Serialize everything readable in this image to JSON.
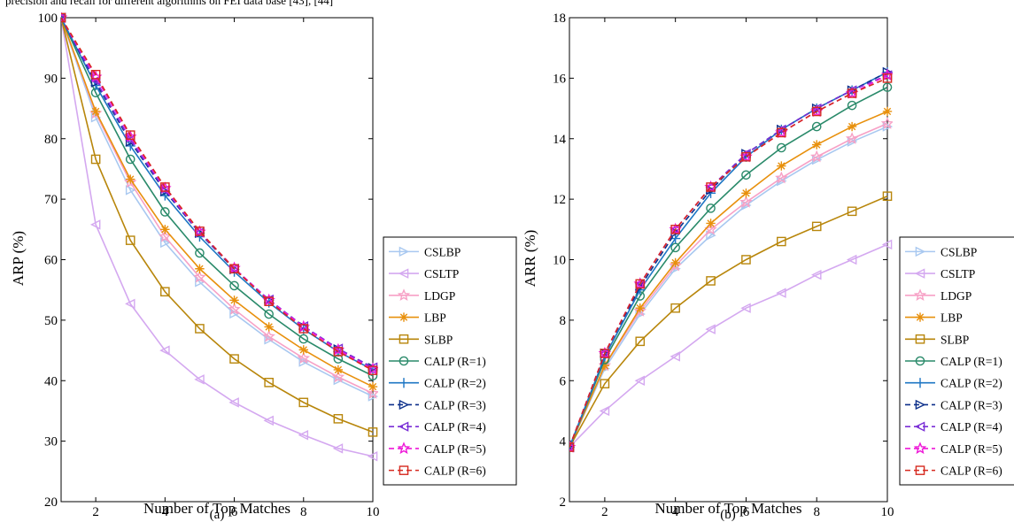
{
  "caption": "precision and recall for different algorithms on FEI data base [43], [44]",
  "colors": {
    "CSLBP": "#a8c8f0",
    "CSLTP": "#d4a8f0",
    "LDGP": "#f7a1c6",
    "LBP": "#e8900c",
    "SLBP": "#b8860b",
    "CALP (R=1)": "#2a8a6a",
    "CALP (R=2)": "#1d76c4",
    "CALP (R=3)": "#0c2f8a",
    "CALP (R=4)": "#7a2fd6",
    "CALP (R=5)": "#ee18d8",
    "CALP (R=6)": "#d62a20"
  },
  "chart_data": [
    {
      "type": "line",
      "panel_label": "(a)",
      "xlabel": "Number of Top Matches",
      "ylabel": "ARP (%)",
      "xlim": [
        1,
        10
      ],
      "ylim": [
        20,
        100
      ],
      "xticks": [
        2,
        4,
        6,
        8,
        10
      ],
      "yticks": [
        20,
        30,
        40,
        50,
        60,
        70,
        80,
        90,
        100
      ],
      "grid": false,
      "legend_position": "outside-right-bottom",
      "x": [
        1,
        2,
        3,
        4,
        5,
        6,
        7,
        8,
        9,
        10
      ],
      "series": [
        {
          "name": "CSLBP",
          "marker": "triangle-right",
          "dash": "solid",
          "values": [
            100,
            83.5,
            71.5,
            62.8,
            56.3,
            51.1,
            46.8,
            43.1,
            40.1,
            37.4
          ]
        },
        {
          "name": "CSLTP",
          "marker": "triangle-left",
          "dash": "solid",
          "values": [
            100,
            65.8,
            52.7,
            45.0,
            40.2,
            36.4,
            33.4,
            31.0,
            28.8,
            27.5
          ]
        },
        {
          "name": "LDGP",
          "marker": "star",
          "dash": "solid",
          "values": [
            100,
            84.2,
            72.8,
            63.8,
            57.1,
            51.8,
            47.3,
            43.7,
            40.6,
            37.9
          ]
        },
        {
          "name": "LBP",
          "marker": "asterisk",
          "dash": "solid",
          "values": [
            100,
            84.5,
            73.3,
            65.0,
            58.5,
            53.3,
            48.9,
            45.1,
            41.8,
            39.0
          ]
        },
        {
          "name": "SLBP",
          "marker": "square",
          "dash": "solid",
          "values": [
            100,
            76.6,
            63.2,
            54.7,
            48.6,
            43.6,
            39.7,
            36.4,
            33.7,
            31.5
          ]
        },
        {
          "name": "CALP (R=1)",
          "marker": "circle",
          "dash": "solid",
          "values": [
            100,
            87.6,
            76.6,
            67.9,
            61.1,
            55.7,
            51.0,
            46.9,
            43.6,
            40.8
          ]
        },
        {
          "name": "CALP (R=2)",
          "marker": "plus",
          "dash": "solid",
          "values": [
            100,
            88.8,
            78.8,
            70.6,
            63.8,
            58.0,
            52.9,
            48.5,
            44.8,
            41.8
          ]
        },
        {
          "name": "CALP (R=3)",
          "marker": "triangle-right",
          "dash": "dashed",
          "values": [
            100,
            89.3,
            79.5,
            71.3,
            64.4,
            58.4,
            53.3,
            48.9,
            45.2,
            42.1
          ]
        },
        {
          "name": "CALP (R=4)",
          "marker": "triangle-left",
          "dash": "dashed",
          "values": [
            100,
            89.6,
            79.8,
            71.5,
            64.5,
            58.5,
            53.4,
            49.0,
            45.3,
            42.2
          ]
        },
        {
          "name": "CALP (R=5)",
          "marker": "star",
          "dash": "dashed",
          "values": [
            100,
            90.2,
            80.3,
            71.8,
            64.6,
            58.6,
            53.3,
            48.9,
            45.1,
            41.9
          ]
        },
        {
          "name": "CALP (R=6)",
          "marker": "square",
          "dash": "dashed",
          "values": [
            100,
            90.6,
            80.6,
            72.0,
            64.7,
            58.5,
            53.1,
            48.6,
            44.8,
            41.7
          ]
        }
      ]
    },
    {
      "type": "line",
      "panel_label": "(b)",
      "xlabel": "Number of Top Matches",
      "ylabel": "ARR (%)",
      "xlim": [
        1,
        10
      ],
      "ylim": [
        2,
        18
      ],
      "xticks": [
        2,
        4,
        6,
        8,
        10
      ],
      "yticks": [
        2,
        4,
        6,
        8,
        10,
        12,
        14,
        16,
        18
      ],
      "grid": false,
      "legend_position": "outside-right-bottom",
      "x": [
        1,
        2,
        3,
        4,
        5,
        6,
        7,
        8,
        9,
        10
      ],
      "series": [
        {
          "name": "CSLBP",
          "marker": "triangle-right",
          "dash": "solid",
          "values": [
            3.8,
            6.4,
            8.2,
            9.7,
            10.8,
            11.8,
            12.6,
            13.3,
            13.9,
            14.4
          ]
        },
        {
          "name": "CSLTP",
          "marker": "triangle-left",
          "dash": "solid",
          "values": [
            3.8,
            5.0,
            6.0,
            6.8,
            7.7,
            8.4,
            8.9,
            9.5,
            10.0,
            10.5
          ]
        },
        {
          "name": "LDGP",
          "marker": "star",
          "dash": "solid",
          "values": [
            3.8,
            6.5,
            8.3,
            9.8,
            11.0,
            11.9,
            12.7,
            13.4,
            14.0,
            14.5
          ]
        },
        {
          "name": "LBP",
          "marker": "asterisk",
          "dash": "solid",
          "values": [
            3.8,
            6.5,
            8.4,
            9.9,
            11.2,
            12.2,
            13.1,
            13.8,
            14.4,
            14.9
          ]
        },
        {
          "name": "SLBP",
          "marker": "square",
          "dash": "solid",
          "values": [
            3.8,
            5.9,
            7.3,
            8.4,
            9.3,
            10.0,
            10.6,
            11.1,
            11.6,
            12.1
          ]
        },
        {
          "name": "CALP (R=1)",
          "marker": "circle",
          "dash": "solid",
          "values": [
            3.8,
            6.7,
            8.8,
            10.4,
            11.7,
            12.8,
            13.7,
            14.4,
            15.1,
            15.7
          ]
        },
        {
          "name": "CALP (R=2)",
          "marker": "plus",
          "dash": "solid",
          "values": [
            3.8,
            6.8,
            9.0,
            10.7,
            12.2,
            13.4,
            14.3,
            15.0,
            15.6,
            16.2
          ]
        },
        {
          "name": "CALP (R=3)",
          "marker": "triangle-right",
          "dash": "dashed",
          "values": [
            3.8,
            6.9,
            9.1,
            10.9,
            12.3,
            13.5,
            14.3,
            15.0,
            15.6,
            16.2
          ]
        },
        {
          "name": "CALP (R=4)",
          "marker": "triangle-left",
          "dash": "dashed",
          "values": [
            3.8,
            6.9,
            9.2,
            11.0,
            12.4,
            13.5,
            14.3,
            15.0,
            15.6,
            16.1
          ]
        },
        {
          "name": "CALP (R=5)",
          "marker": "star",
          "dash": "dashed",
          "values": [
            3.8,
            6.9,
            9.2,
            11.0,
            12.4,
            13.4,
            14.2,
            14.9,
            15.5,
            16.1
          ]
        },
        {
          "name": "CALP (R=6)",
          "marker": "square",
          "dash": "dashed",
          "values": [
            3.8,
            6.9,
            9.2,
            11.0,
            12.4,
            13.4,
            14.2,
            14.9,
            15.5,
            16.0
          ]
        }
      ]
    }
  ]
}
